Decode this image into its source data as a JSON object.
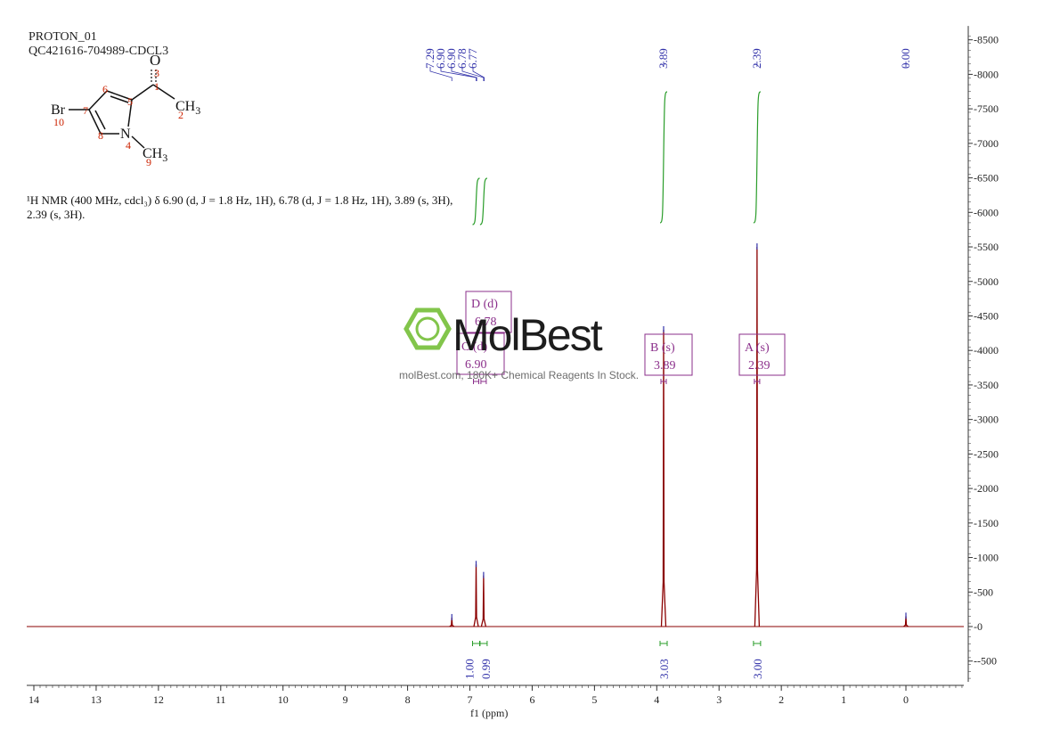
{
  "header": {
    "line1": "PROTON_01",
    "line2": "QC421616-704989-CDCL3"
  },
  "structure": {
    "labels": {
      "O": "O",
      "CH3_top": "CH",
      "CH3_top_sub": "3",
      "Br": "Br",
      "N": "N",
      "CH3_bottom": "CH",
      "CH3_bottom_sub": "3"
    },
    "numbers": [
      "3",
      "1",
      "6",
      "5",
      "2",
      "7",
      "10",
      "8",
      "4",
      "9"
    ]
  },
  "nmr_text": {
    "line1": "¹H NMR (400 MHz, cdcl₃) δ 6.90 (d, J = 1.8 Hz, 1H), 6.78 (d, J = 1.8 Hz, 1H), 3.89 (s, 3H),",
    "line2": "2.39 (s, 3H)."
  },
  "watermark": {
    "brand": "MolBest",
    "tagline": "molBest.com, 180K+ Chemical Reagents In Stock."
  },
  "colors": {
    "spectrum": "#8b0000",
    "integral": "#2a9d2a",
    "annotation": "#8b2f8b",
    "peak_marker": "#3333aa",
    "logo_green": "#7cc242",
    "axis": "#333333"
  },
  "chart_data": {
    "type": "line",
    "title": "",
    "xlabel": "f1 (ppm)",
    "ylabel": "",
    "x_reversed": true,
    "xlim": [
      14.1,
      -0.9
    ],
    "ylim": [
      -800,
      8700
    ],
    "x_ticks": [
      14,
      13,
      12,
      11,
      10,
      9,
      8,
      7,
      6,
      5,
      4,
      3,
      2,
      1,
      0
    ],
    "y_ticks": [
      -500,
      0,
      500,
      1000,
      1500,
      2000,
      2500,
      3000,
      3500,
      4000,
      4500,
      5000,
      5500,
      6000,
      6500,
      7000,
      7500,
      8000,
      8500
    ],
    "peaks": [
      {
        "ppm": 7.29,
        "height": 130
      },
      {
        "ppm": 6.9,
        "height": 900
      },
      {
        "ppm": 6.78,
        "height": 740
      },
      {
        "ppm": 3.89,
        "height": 4300
      },
      {
        "ppm": 2.39,
        "height": 5500
      },
      {
        "ppm": 0.0,
        "height": 150
      }
    ],
    "peak_labels": [
      {
        "text": "7.29",
        "ppm": 7.29
      },
      {
        "text": "6.90",
        "ppm": 6.9
      },
      {
        "text": "6.90",
        "ppm": 6.89
      },
      {
        "text": "6.78",
        "ppm": 6.78
      },
      {
        "text": "6.77",
        "ppm": 6.77
      },
      {
        "text": "3.89",
        "ppm": 3.89
      },
      {
        "text": "2.39",
        "ppm": 2.39
      },
      {
        "text": "0.00",
        "ppm": 0.0
      }
    ],
    "integrals": [
      {
        "ppm": 6.9,
        "value": "1.00"
      },
      {
        "ppm": 6.78,
        "value": "0.99"
      },
      {
        "ppm": 3.89,
        "value": "3.03"
      },
      {
        "ppm": 2.39,
        "value": "3.00"
      }
    ],
    "multiplets": [
      {
        "id": "D",
        "label": "D (d)",
        "shift": "6.78",
        "ppm": 6.78
      },
      {
        "id": "C",
        "label": "C (d)",
        "shift": "6.90",
        "ppm": 6.9
      },
      {
        "id": "B",
        "label": "B (s)",
        "shift": "3.89",
        "ppm": 3.89
      },
      {
        "id": "A",
        "label": "A (s)",
        "shift": "2.39",
        "ppm": 2.39
      }
    ]
  }
}
